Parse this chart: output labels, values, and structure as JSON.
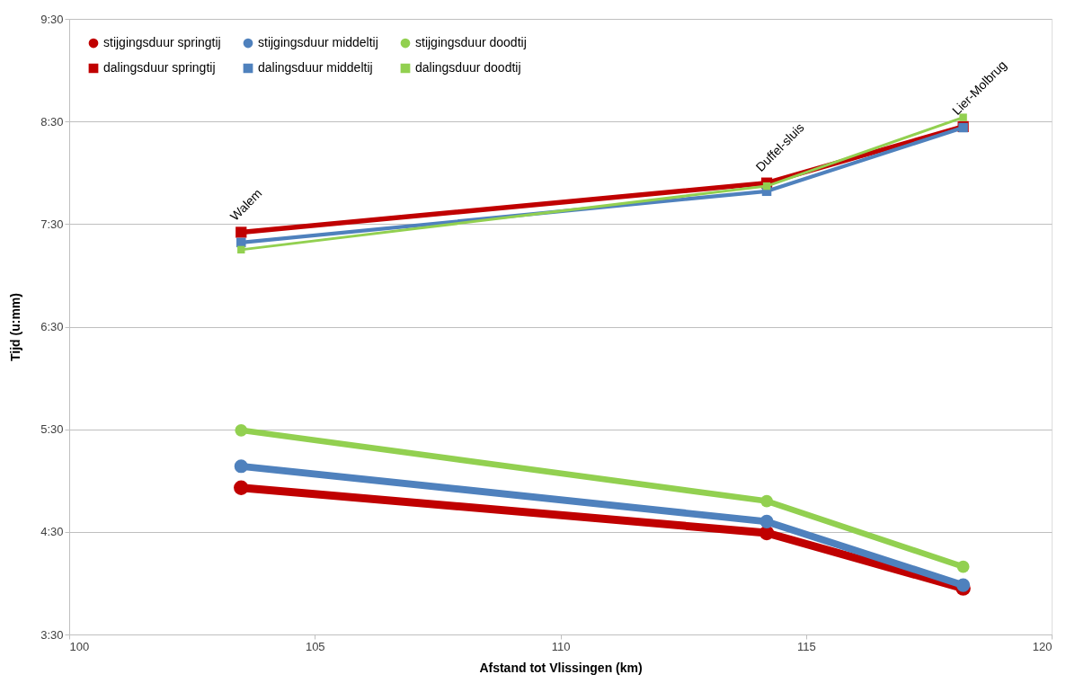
{
  "chart_data": {
    "type": "line",
    "xlabel": "Afstand tot Vlissingen (km)",
    "ylabel": "Tijd (u:mm)",
    "x": [
      103.5,
      114.2,
      118.2
    ],
    "xlim": [
      100,
      120
    ],
    "xticks": [
      100,
      105,
      110,
      115,
      120
    ],
    "ylim": [
      3.5,
      9.5
    ],
    "yticks": [
      {
        "value": 3.5,
        "label": "3:30"
      },
      {
        "value": 4.5,
        "label": "4:30"
      },
      {
        "value": 5.5,
        "label": "5:30"
      },
      {
        "value": 6.5,
        "label": "6:30"
      },
      {
        "value": 7.5,
        "label": "7:30"
      },
      {
        "value": 8.5,
        "label": "8:30"
      },
      {
        "value": 9.5,
        "label": "9:30"
      }
    ],
    "grid": "y",
    "legend": "top left",
    "series": [
      {
        "name": "stijgingsduur springtij",
        "color": "#c00000",
        "marker": "circle",
        "values": [
          4.93,
          4.49,
          3.95
        ]
      },
      {
        "name": "stijgingsduur middeltij",
        "color": "#4f81bd",
        "marker": "circle",
        "values": [
          5.14,
          4.6,
          3.98
        ]
      },
      {
        "name": "stijgingsduur doodtij",
        "color": "#92d050",
        "marker": "circle",
        "values": [
          5.49,
          4.8,
          4.16
        ]
      },
      {
        "name": "dalingsduur springtij",
        "color": "#c00000",
        "marker": "square",
        "values": [
          7.42,
          7.9,
          8.45
        ]
      },
      {
        "name": "dalingsduur middeltij",
        "color": "#4f81bd",
        "marker": "square",
        "values": [
          7.32,
          7.82,
          8.44
        ]
      },
      {
        "name": "dalingsduur doodtij",
        "color": "#92d050",
        "marker": "square",
        "values": [
          7.25,
          7.87,
          8.54
        ]
      }
    ],
    "annotations": [
      {
        "text": "Walem",
        "x": 103.5,
        "y": 7.42
      },
      {
        "text": "Duffel-sluis",
        "x": 114.2,
        "y": 7.9
      },
      {
        "text": "Lier-Molbrug",
        "x": 118.2,
        "y": 8.45
      }
    ]
  }
}
